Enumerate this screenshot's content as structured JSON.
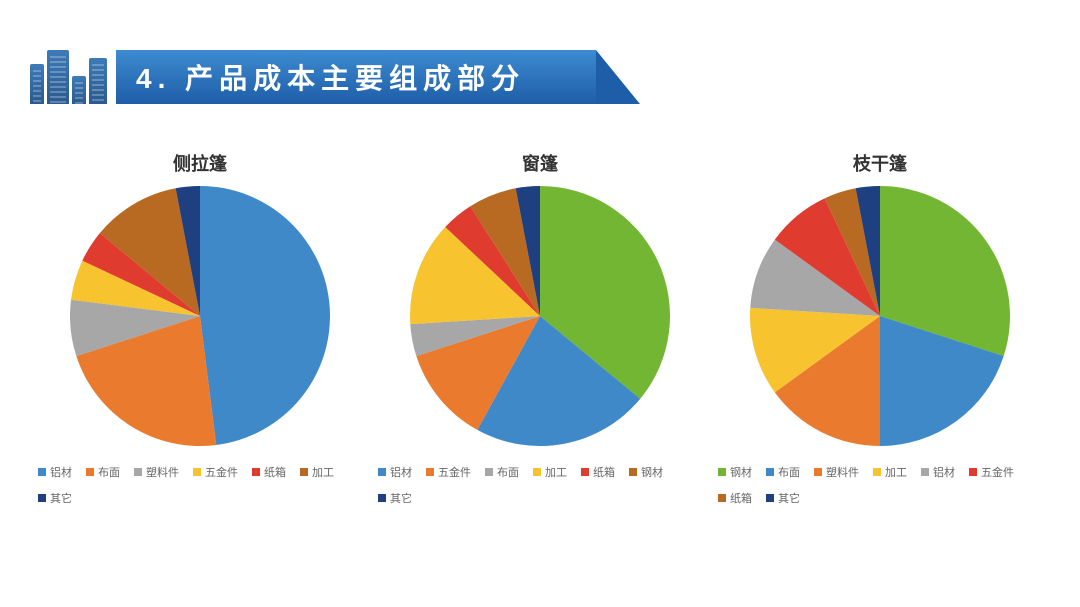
{
  "header": {
    "title": "4. 产品成本主要组成部分",
    "title_color": "#ffffff",
    "title_fontsize": 28,
    "banner_gradient_top": "#3d8bd0",
    "banner_gradient_bottom": "#1e5ea8",
    "icon_gradient_top": "#3d7bb8",
    "icon_gradient_bottom": "#2a5a8f"
  },
  "background_color": "#ffffff",
  "pie_common": {
    "radius": 120,
    "start_angle_deg": -90,
    "label_fontsize": 11,
    "label_color": "#666666",
    "title_fontsize": 18,
    "title_color": "#333333",
    "swatch_size": 8
  },
  "charts": [
    {
      "title": "侧拉篷",
      "type": "pie",
      "slices": [
        {
          "label": "铝材",
          "value": 48,
          "color": "#3f89c9"
        },
        {
          "label": "布面",
          "value": 22,
          "color": "#e97a2e"
        },
        {
          "label": "塑料件",
          "value": 7,
          "color": "#a7a7a7"
        },
        {
          "label": "五金件",
          "value": 5,
          "color": "#f7c32e"
        },
        {
          "label": "纸箱",
          "value": 4,
          "color": "#e03b2f"
        },
        {
          "label": "加工",
          "value": 11,
          "color": "#b86a22"
        },
        {
          "label": "其它",
          "value": 3,
          "color": "#1e3f80"
        }
      ]
    },
    {
      "title": "窗篷",
      "type": "pie",
      "slices": [
        {
          "label": "铝材",
          "value": 22,
          "color": "#3f89c9"
        },
        {
          "label": "五金件",
          "value": 12,
          "color": "#e97a2e"
        },
        {
          "label": "布面",
          "value": 4,
          "color": "#a7a7a7"
        },
        {
          "label": "加工",
          "value": 13,
          "color": "#f7c32e"
        },
        {
          "label": "纸箱",
          "value": 4,
          "color": "#e03b2f"
        },
        {
          "label": "钢材",
          "value": 6,
          "color": "#b86a22"
        },
        {
          "label": "其它",
          "value": 3,
          "color": "#1e3f80"
        },
        {
          "label": "_green",
          "value": 36,
          "color": "#72b633",
          "hidden_in_legend": true
        }
      ],
      "legend_order": [
        "铝材",
        "五金件",
        "布面",
        "加工",
        "纸箱",
        "钢材",
        "其它"
      ]
    },
    {
      "title": "枝干篷",
      "type": "pie",
      "slices": [
        {
          "label": "钢材",
          "value": 30,
          "color": "#72b633"
        },
        {
          "label": "布面",
          "value": 20,
          "color": "#3f89c9"
        },
        {
          "label": "塑料件",
          "value": 15,
          "color": "#e97a2e"
        },
        {
          "label": "加工",
          "value": 11,
          "color": "#f7c32e"
        },
        {
          "label": "铝材",
          "value": 9,
          "color": "#a7a7a7"
        },
        {
          "label": "五金件",
          "value": 8,
          "color": "#e03b2f"
        },
        {
          "label": "纸箱",
          "value": 4,
          "color": "#b86a22"
        },
        {
          "label": "其它",
          "value": 3,
          "color": "#1e3f80"
        }
      ]
    }
  ]
}
